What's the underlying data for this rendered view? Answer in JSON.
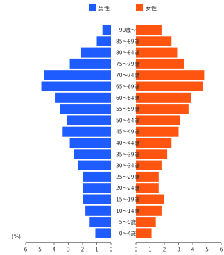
{
  "chart_data": {
    "type": "bar",
    "orientation": "horizontal-pyramid",
    "unit_label": "(%)",
    "legend_position": "top-center",
    "grid": false,
    "xlim": [
      0,
      6
    ],
    "x_ticks": [
      6,
      5,
      4,
      3,
      2,
      1,
      0
    ],
    "categories": [
      "90歳〜",
      "85〜89歳",
      "80〜84歳",
      "75〜79歳",
      "70〜74歳",
      "65〜69歳",
      "60〜64歳",
      "55〜59歳",
      "50〜54歳",
      "45〜49歳",
      "40〜44歳",
      "35〜39歳",
      "30〜34歳",
      "25〜29歳",
      "20〜24歳",
      "15〜19歳",
      "10〜14歳",
      "5〜9歳",
      "0〜4歳"
    ],
    "series": [
      {
        "name": "男性",
        "color": "#1f5cff",
        "values": [
          0.6,
          1.0,
          2.1,
          2.9,
          4.7,
          4.9,
          3.9,
          3.6,
          3.1,
          3.4,
          2.9,
          2.6,
          2.3,
          2.0,
          2.0,
          2.0,
          1.8,
          1.5,
          1.1
        ]
      },
      {
        "name": "女性",
        "color": "#ff5511",
        "values": [
          1.8,
          2.5,
          2.9,
          3.4,
          4.8,
          4.7,
          3.9,
          3.7,
          3.1,
          3.0,
          2.5,
          2.2,
          1.8,
          1.6,
          1.6,
          2.0,
          1.8,
          1.4,
          1.1
        ]
      }
    ]
  }
}
